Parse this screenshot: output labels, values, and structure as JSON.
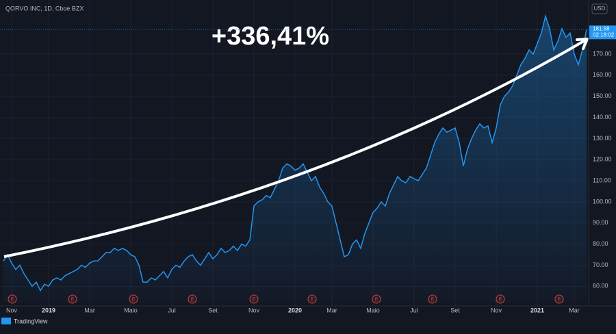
{
  "chart_data": {
    "type": "area",
    "title": "QORVO INC, 1D, Cboe BZX",
    "currency": "USD",
    "annotation": "+336,41%",
    "last_price_label": "181.58",
    "countdown": "02:18:02",
    "brand": "TradingView",
    "earnings_markers": [
      "E",
      "E",
      "E",
      "E",
      "E",
      "E",
      "E",
      "E",
      "E",
      "E"
    ],
    "color": "#2196f3",
    "values": [
      72,
      75,
      71,
      68,
      70,
      66,
      63,
      60,
      62,
      58,
      61,
      60,
      63,
      64,
      63,
      65,
      66,
      67,
      68,
      70,
      69,
      71,
      72,
      72,
      74,
      76,
      76,
      78,
      77,
      78,
      77,
      75,
      74,
      70,
      62,
      62,
      64,
      63,
      65,
      67,
      64,
      68,
      70,
      69,
      72,
      74,
      75,
      72,
      70,
      73,
      76,
      73,
      75,
      78,
      76,
      77,
      79,
      77,
      80,
      79,
      82,
      98,
      100,
      101,
      103,
      102,
      106,
      110,
      116,
      118,
      117,
      115,
      116,
      118,
      114,
      110,
      112,
      107,
      104,
      100,
      98,
      90,
      82,
      74,
      75,
      80,
      82,
      78,
      85,
      90,
      95,
      97,
      100,
      98,
      104,
      108,
      112,
      110,
      109,
      112,
      111,
      110,
      113,
      116,
      122,
      128,
      132,
      135,
      133,
      134,
      135,
      128,
      117,
      125,
      130,
      134,
      137,
      135,
      136,
      128,
      135,
      146,
      150,
      152,
      155,
      160,
      165,
      168,
      172,
      170,
      175,
      180,
      188,
      182,
      172,
      176,
      182,
      178,
      180,
      170,
      165,
      172,
      181.58
    ],
    "xlim": [
      0,
      142
    ],
    "xticks": [
      {
        "value": 2,
        "label": "Nov"
      },
      {
        "value": 11,
        "label": "2019"
      },
      {
        "value": 21,
        "label": "Mar"
      },
      {
        "value": 31,
        "label": "Maio"
      },
      {
        "value": 41,
        "label": "Jul"
      },
      {
        "value": 51,
        "label": "Set"
      },
      {
        "value": 61,
        "label": "Nov"
      },
      {
        "value": 71,
        "label": "2020"
      },
      {
        "value": 80,
        "label": "Mar"
      },
      {
        "value": 90,
        "label": "Maio"
      },
      {
        "value": 100,
        "label": "Jul"
      },
      {
        "value": 110,
        "label": "Set"
      },
      {
        "value": 120,
        "label": "Nov"
      },
      {
        "value": 130,
        "label": "2021"
      },
      {
        "value": 139,
        "label": "Mar"
      }
    ],
    "ylim": [
      52,
      194
    ],
    "yticks": [
      {
        "value": 60,
        "label": "60.00"
      },
      {
        "value": 70,
        "label": "70.00"
      },
      {
        "value": 80,
        "label": "80.00"
      },
      {
        "value": 90,
        "label": "90.00"
      },
      {
        "value": 100,
        "label": "100.00"
      },
      {
        "value": 110,
        "label": "110.00"
      },
      {
        "value": 120,
        "label": "120.00"
      },
      {
        "value": 130,
        "label": "130.00"
      },
      {
        "value": 140,
        "label": "140.00"
      },
      {
        "value": 150,
        "label": "150.00"
      },
      {
        "value": 160,
        "label": "160.00"
      },
      {
        "value": 170,
        "label": "170.00"
      }
    ],
    "grid": true
  }
}
